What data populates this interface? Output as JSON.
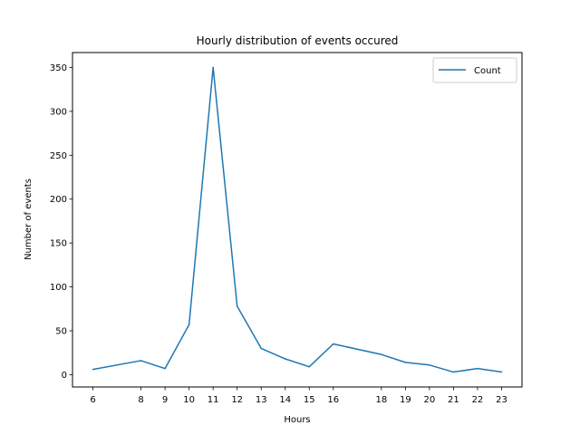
{
  "chart_data": {
    "type": "line",
    "title": "Hourly distribution of events occured",
    "xlabel": "Hours",
    "ylabel": "Number of events",
    "x": [
      6,
      8,
      9,
      10,
      11,
      12,
      13,
      14,
      15,
      16,
      18,
      19,
      20,
      21,
      22,
      23
    ],
    "series": [
      {
        "name": "Count",
        "values": [
          6,
          16,
          7,
          57,
          350,
          78,
          30,
          18,
          9,
          35,
          23,
          14,
          11,
          3,
          7,
          3
        ]
      }
    ],
    "xticks": [
      6,
      8,
      9,
      10,
      11,
      12,
      13,
      14,
      15,
      16,
      18,
      19,
      20,
      21,
      22,
      23
    ],
    "yticks": [
      0,
      50,
      100,
      150,
      200,
      250,
      300,
      350
    ],
    "xlim": [
      5.15,
      23.85
    ],
    "ylim": [
      -14,
      367
    ],
    "grid": false,
    "legend_position": "top-right",
    "colors": {
      "line": "#1f77b4"
    }
  }
}
